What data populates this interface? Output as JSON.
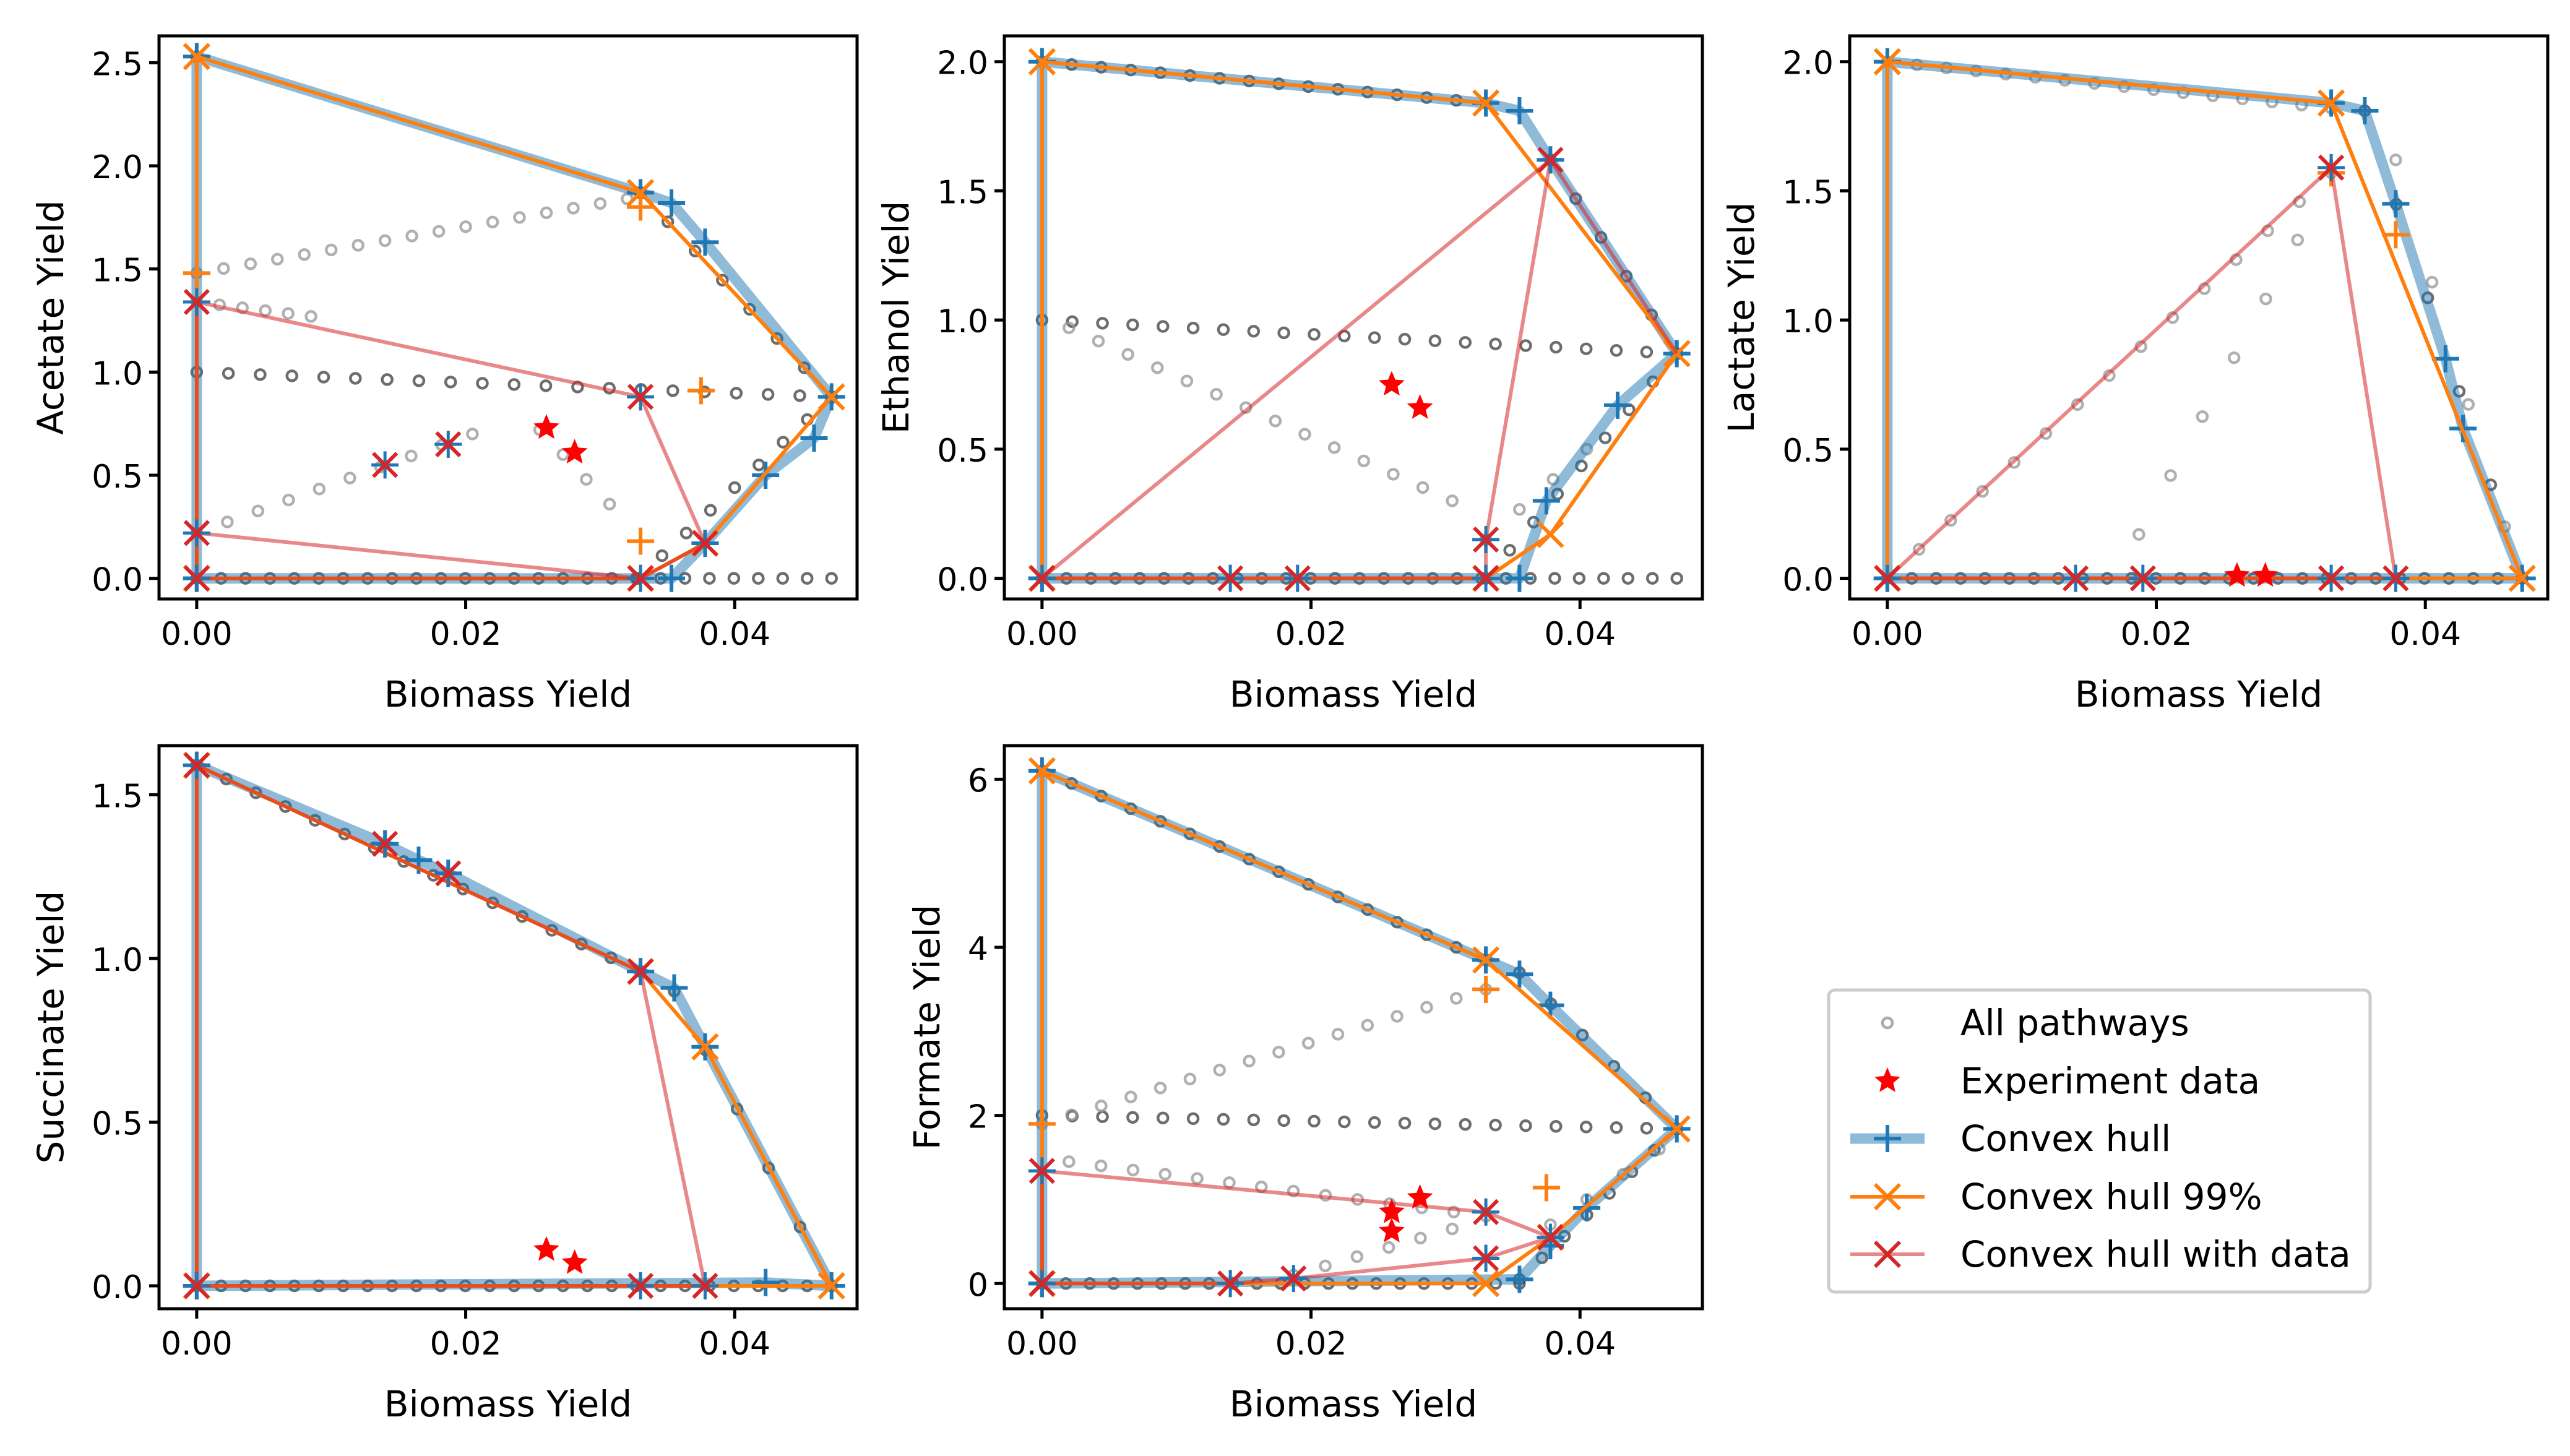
{
  "legend": {
    "placement": "center-right",
    "entries": [
      {
        "key": "pathways",
        "label": "All pathways",
        "color": "#808080"
      },
      {
        "key": "exp",
        "label": "Experiment data",
        "color": "#ff0000"
      },
      {
        "key": "hull",
        "label": "Convex hull",
        "color": "#1f77b4"
      },
      {
        "key": "hull99",
        "label": "Convex hull 99%",
        "color": "#ff7f0e"
      },
      {
        "key": "hulldata",
        "label": "Convex hull with data",
        "color": "#d62728"
      }
    ]
  },
  "chart_data": [
    {
      "type": "scatter",
      "xlabel": "Biomass Yield",
      "ylabel": "Acetate Yield",
      "xlim": [
        -0.0028,
        0.0491
      ],
      "ylim": [
        -0.1,
        2.63
      ],
      "xticks": [
        0.0,
        0.02,
        0.04
      ],
      "xtick_labels": [
        "0.00",
        "0.02",
        "0.04"
      ],
      "yticks": [
        0.0,
        0.5,
        1.0,
        1.5,
        2.0,
        2.5
      ],
      "ytick_labels": [
        "0.0",
        "0.5",
        "1.0",
        "1.5",
        "2.0",
        "2.5"
      ],
      "pathways": [
        [
          [
            0,
            2.53
          ],
          [
            0.033,
            1.87
          ],
          0.03,
          "dark"
        ],
        [
          [
            0.033,
            1.87
          ],
          [
            0.0472,
            0.88
          ],
          0.002,
          "dark"
        ],
        [
          [
            0,
            1.0
          ],
          [
            0.0472,
            0.88
          ],
          0.0024,
          "dark"
        ],
        [
          [
            0,
            0.0
          ],
          [
            0.0472,
            0.0
          ],
          0.0018,
          "dark"
        ],
        [
          [
            0.0328,
            0.0
          ],
          [
            0.0472,
            0.88
          ],
          0.0018,
          "dark"
        ],
        [
          [
            0,
            1.48
          ],
          [
            0.032,
            1.84
          ],
          0.002,
          "light"
        ],
        [
          [
            0,
            1.34
          ],
          [
            0.0085,
            1.27
          ],
          0.0018,
          "light"
        ],
        [
          [
            0,
            0.22
          ],
          [
            0.0205,
            0.7
          ],
          0.0023,
          "light"
        ],
        [
          [
            0.0255,
            0.72
          ],
          [
            0.0307,
            0.36
          ],
          0.0018,
          "light"
        ]
      ],
      "hull": [
        [
          0,
          0
        ],
        [
          0,
          2.53
        ],
        [
          0.033,
          1.87
        ],
        [
          0.0353,
          1.82
        ],
        [
          0.0378,
          1.63
        ],
        [
          0.0472,
          0.88
        ],
        [
          0.0459,
          0.68
        ],
        [
          0.0423,
          0.5
        ],
        [
          0.0378,
          0.17
        ],
        [
          0.0353,
          0.0
        ],
        [
          0,
          0
        ]
      ],
      "hull99": [
        [
          0,
          0
        ],
        [
          0,
          2.53
        ],
        [
          0.033,
          1.87
        ],
        [
          0.0472,
          0.88
        ],
        [
          0.0378,
          0.17
        ],
        [
          0.033,
          0.0
        ],
        [
          0,
          0
        ]
      ],
      "hull99_extra": [
        [
          0,
          1.48
        ],
        [
          0.033,
          1.8
        ],
        [
          0.0375,
          0.91
        ],
        [
          0.033,
          0.18
        ]
      ],
      "hulldata_lines": [
        [
          [
            0,
            0
          ],
          [
            0,
            1.34
          ]
        ],
        [
          [
            0,
            1.34
          ],
          [
            0.033,
            0.88
          ],
          [
            0.0378,
            0.17
          ],
          [
            0.033,
            0.0
          ],
          [
            0,
            0.22
          ]
        ],
        [
          [
            0,
            0
          ],
          [
            0.033,
            0.0
          ]
        ]
      ],
      "hulldata_markers": [
        [
          0,
          1.34
        ],
        [
          0,
          0.22
        ],
        [
          0.014,
          0.55
        ],
        [
          0.0187,
          0.65
        ],
        [
          0.033,
          0.88
        ],
        [
          0.0378,
          0.17
        ],
        [
          0.033,
          0.0
        ],
        [
          0,
          0
        ]
      ],
      "experiment": [
        [
          0.026,
          0.73
        ],
        [
          0.0281,
          0.61
        ]
      ]
    },
    {
      "type": "scatter",
      "xlabel": "Biomass Yield",
      "ylabel": "Ethanol Yield",
      "xlim": [
        -0.0028,
        0.0491
      ],
      "ylim": [
        -0.08,
        2.1
      ],
      "xticks": [
        0.0,
        0.02,
        0.04
      ],
      "xtick_labels": [
        "0.00",
        "0.02",
        "0.04"
      ],
      "yticks": [
        0.0,
        0.5,
        1.0,
        1.5,
        2.0
      ],
      "ytick_labels": [
        "0.0",
        "0.5",
        "1.0",
        "1.5",
        "2.0"
      ],
      "pathways": [
        [
          [
            0,
            2.0
          ],
          [
            0.033,
            1.84
          ],
          0.0022,
          "dark"
        ],
        [
          [
            0.0378,
            1.62
          ],
          [
            0.0472,
            0.87
          ],
          0.0018,
          "dark"
        ],
        [
          [
            0,
            1.0
          ],
          [
            0.0472,
            0.87
          ],
          0.0022,
          "dark"
        ],
        [
          [
            0,
            0.0
          ],
          [
            0.0472,
            0.0
          ],
          0.0018,
          "dark"
        ],
        [
          [
            0.033,
            0.0
          ],
          [
            0.0472,
            0.87
          ],
          0.0018,
          "dark"
        ],
        [
          [
            0.002,
            0.97
          ],
          [
            0.0305,
            0.3
          ],
          0.0022,
          "light"
        ],
        [
          [
            0.033,
            0.15
          ],
          [
            0.0405,
            0.5
          ],
          0.0025,
          "light"
        ]
      ],
      "hull": [
        [
          0,
          0
        ],
        [
          0,
          2.0
        ],
        [
          0.033,
          1.84
        ],
        [
          0.0355,
          1.81
        ],
        [
          0.0378,
          1.62
        ],
        [
          0.0472,
          0.87
        ],
        [
          0.0428,
          0.67
        ],
        [
          0.0375,
          0.3
        ],
        [
          0.0355,
          0.0
        ],
        [
          0,
          0
        ]
      ],
      "hull99": [
        [
          0,
          0
        ],
        [
          0,
          2.0
        ],
        [
          0.033,
          1.84
        ],
        [
          0.0472,
          0.87
        ],
        [
          0.0378,
          0.17
        ],
        [
          0.033,
          0.0
        ],
        [
          0,
          0
        ]
      ],
      "hull99_extra": [],
      "hulldata_lines": [
        [
          [
            0,
            0
          ],
          [
            0.0378,
            1.62
          ],
          [
            0.0472,
            0.87
          ]
        ],
        [
          [
            0.0378,
            1.62
          ],
          [
            0.033,
            0.15
          ],
          [
            0.033,
            0.0
          ],
          [
            0,
            0
          ]
        ]
      ],
      "hulldata_markers": [
        [
          0,
          0
        ],
        [
          0.014,
          0
        ],
        [
          0.019,
          0
        ],
        [
          0.033,
          0.15
        ],
        [
          0.033,
          0.0
        ],
        [
          0.0378,
          1.62
        ]
      ],
      "experiment": [
        [
          0.026,
          0.75
        ],
        [
          0.0281,
          0.66
        ]
      ]
    },
    {
      "type": "scatter",
      "xlabel": "Biomass Yield",
      "ylabel": "Lactate Yield",
      "xlim": [
        -0.0028,
        0.0491
      ],
      "ylim": [
        -0.08,
        2.1
      ],
      "xticks": [
        0.0,
        0.02,
        0.04
      ],
      "xtick_labels": [
        "0.00",
        "0.02",
        "0.04"
      ],
      "yticks": [
        0.0,
        0.5,
        1.0,
        1.5,
        2.0
      ],
      "ytick_labels": [
        "0.0",
        "0.5",
        "1.0",
        "1.5",
        "2.0"
      ],
      "pathways": [
        [
          [
            0,
            2.0
          ],
          [
            0.033,
            1.82
          ],
          0.0022,
          "light"
        ],
        [
          [
            0.0355,
            1.81
          ],
          [
            0.0472,
            0.0
          ],
          0.0022,
          "dark"
        ],
        [
          [
            0,
            0.0
          ],
          [
            0.0472,
            0.0
          ],
          0.0018,
          "dark"
        ],
        [
          [
            0,
            0.0
          ],
          [
            0.033,
            1.57
          ],
          0.0023,
          "light"
        ],
        [
          [
            0.0187,
            0.17
          ],
          [
            0.0305,
            1.31
          ],
          0.0023,
          "light"
        ],
        [
          [
            0.0378,
            1.62
          ],
          [
            0.0459,
            0.2
          ],
          0.0025,
          "light"
        ]
      ],
      "hull": [
        [
          0,
          0
        ],
        [
          0,
          2.0
        ],
        [
          0.033,
          1.84
        ],
        [
          0.0355,
          1.81
        ],
        [
          0.0378,
          1.45
        ],
        [
          0.0415,
          0.85
        ],
        [
          0.0428,
          0.58
        ],
        [
          0.0472,
          0.0
        ],
        [
          0,
          0
        ]
      ],
      "hull99": [
        [
          0,
          0
        ],
        [
          0,
          2.0
        ],
        [
          0.033,
          1.84
        ],
        [
          0.0472,
          0.0
        ],
        [
          0,
          0
        ]
      ],
      "hull99_extra": [
        [
          0.033,
          1.57
        ],
        [
          0.0378,
          1.33
        ]
      ],
      "hulldata_lines": [
        [
          [
            0,
            0
          ],
          [
            0.033,
            1.59
          ],
          [
            0.0378,
            0.0
          ],
          [
            0,
            0
          ]
        ]
      ],
      "hulldata_markers": [
        [
          0,
          0
        ],
        [
          0.014,
          0
        ],
        [
          0.019,
          0
        ],
        [
          0.033,
          0
        ],
        [
          0.0378,
          0
        ],
        [
          0.033,
          1.59
        ]
      ],
      "experiment": [
        [
          0.026,
          0.01
        ],
        [
          0.0281,
          0.01
        ]
      ]
    },
    {
      "type": "scatter",
      "xlabel": "",
      "ylabel": "Succinate Yield",
      "xlim": [
        -0.0028,
        0.0491
      ],
      "ylim": [
        -0.07,
        1.65
      ],
      "xticks": [
        0.0,
        0.02,
        0.04
      ],
      "xtick_labels": [
        "0.00",
        "0.02",
        "0.04"
      ],
      "yticks": [
        0.0,
        0.5,
        1.0,
        1.5
      ],
      "ytick_labels": [
        "0.0",
        "0.5",
        "1.0",
        "1.5"
      ],
      "pathways": [
        [
          [
            0,
            1.59
          ],
          [
            0.033,
            0.96
          ],
          0.0022,
          "dark"
        ],
        [
          [
            0.0355,
            0.9
          ],
          [
            0.0472,
            0.0
          ],
          0.0022,
          "dark"
        ],
        [
          [
            0,
            0.0
          ],
          [
            0.0472,
            0.0
          ],
          0.0018,
          "dark"
        ]
      ],
      "hull": [
        [
          0,
          0
        ],
        [
          0,
          1.59
        ],
        [
          0.014,
          1.35
        ],
        [
          0.0165,
          1.3
        ],
        [
          0.0187,
          1.26
        ],
        [
          0.033,
          0.96
        ],
        [
          0.0355,
          0.91
        ],
        [
          0.0378,
          0.73
        ],
        [
          0.0472,
          0.0
        ],
        [
          0.0423,
          0.01
        ],
        [
          0,
          0
        ]
      ],
      "hull99": [
        [
          0,
          0
        ],
        [
          0,
          1.59
        ],
        [
          0.033,
          0.96
        ],
        [
          0.0378,
          0.73
        ],
        [
          0.0472,
          0.0
        ],
        [
          0,
          0
        ]
      ],
      "hull99_extra": [],
      "hulldata_lines": [
        [
          [
            0,
            0
          ],
          [
            0,
            1.59
          ],
          [
            0.033,
            0.96
          ],
          [
            0.0378,
            0.0
          ],
          [
            0,
            0
          ]
        ]
      ],
      "hulldata_markers": [
        [
          0,
          0
        ],
        [
          0,
          1.59
        ],
        [
          0.014,
          1.35
        ],
        [
          0.0187,
          1.26
        ],
        [
          0.033,
          0.96
        ],
        [
          0.033,
          0.0
        ],
        [
          0.0378,
          0.0
        ]
      ],
      "experiment": [
        [
          0.026,
          0.11
        ],
        [
          0.0281,
          0.07
        ]
      ]
    },
    {
      "type": "scatter",
      "xlabel": "Biomass Yield",
      "ylabel": "Formate Yield",
      "xlim": [
        -0.0028,
        0.0491
      ],
      "ylim": [
        -0.3,
        6.4
      ],
      "xticks": [
        0.0,
        0.02,
        0.04
      ],
      "xtick_labels": [
        "0.00",
        "0.02",
        "0.04"
      ],
      "yticks": [
        0,
        2,
        4,
        6
      ],
      "ytick_labels": [
        "0",
        "2",
        "4",
        "6"
      ],
      "pathways": [
        [
          [
            0,
            6.1
          ],
          [
            0.033,
            3.85
          ],
          0.0022,
          "dark"
        ],
        [
          [
            0.0355,
            3.7
          ],
          [
            0.0472,
            1.84
          ],
          0.0022,
          "dark"
        ],
        [
          [
            0,
            2.0
          ],
          [
            0.0472,
            1.84
          ],
          0.0022,
          "dark"
        ],
        [
          [
            0,
            0.0
          ],
          [
            0.0355,
            0.0
          ],
          0.0018,
          "dark"
        ],
        [
          [
            0.0355,
            0.05
          ],
          [
            0.0472,
            1.84
          ],
          0.0018,
          "dark"
        ],
        [
          [
            0,
            1.9
          ],
          [
            0.033,
            3.5
          ],
          0.0022,
          "light"
        ],
        [
          [
            0.002,
            1.45
          ],
          [
            0.033,
            0.8
          ],
          0.0024,
          "light"
        ],
        [
          [
            0.0187,
            0.1
          ],
          [
            0.0305,
            0.65
          ],
          0.0023,
          "light"
        ],
        [
          [
            0.0378,
            0.7
          ],
          [
            0.0459,
            1.6
          ],
          0.0025,
          "light"
        ]
      ],
      "hull": [
        [
          0,
          0
        ],
        [
          0,
          6.1
        ],
        [
          0.033,
          3.85
        ],
        [
          0.0355,
          3.68
        ],
        [
          0.0378,
          3.31
        ],
        [
          0.0472,
          1.84
        ],
        [
          0.0405,
          0.9
        ],
        [
          0.0378,
          0.45
        ],
        [
          0.0355,
          0.05
        ],
        [
          0,
          0
        ]
      ],
      "hull99": [
        [
          0,
          0
        ],
        [
          0,
          6.1
        ],
        [
          0.033,
          3.85
        ],
        [
          0.0472,
          1.84
        ],
        [
          0.0378,
          0.55
        ],
        [
          0.033,
          0.0
        ],
        [
          0,
          0
        ]
      ],
      "hull99_extra": [
        [
          0,
          1.9
        ],
        [
          0.033,
          3.5
        ],
        [
          0.0375,
          1.14
        ]
      ],
      "hulldata_lines": [
        [
          [
            0,
            0
          ],
          [
            0,
            1.34
          ],
          [
            0.033,
            0.85
          ],
          [
            0.0378,
            0.55
          ],
          [
            0.033,
            0.3
          ],
          [
            0.0187,
            0.06
          ],
          [
            0.014,
            0.0
          ],
          [
            0,
            0
          ]
        ]
      ],
      "hulldata_markers": [
        [
          0,
          0
        ],
        [
          0,
          1.34
        ],
        [
          0.014,
          0
        ],
        [
          0.0187,
          0.06
        ],
        [
          0.033,
          0.85
        ],
        [
          0.033,
          0.3
        ],
        [
          0.0378,
          0.55
        ]
      ],
      "experiment": [
        [
          0.026,
          0.85
        ],
        [
          0.0281,
          1.02
        ],
        [
          0.026,
          0.62
        ]
      ]
    }
  ]
}
